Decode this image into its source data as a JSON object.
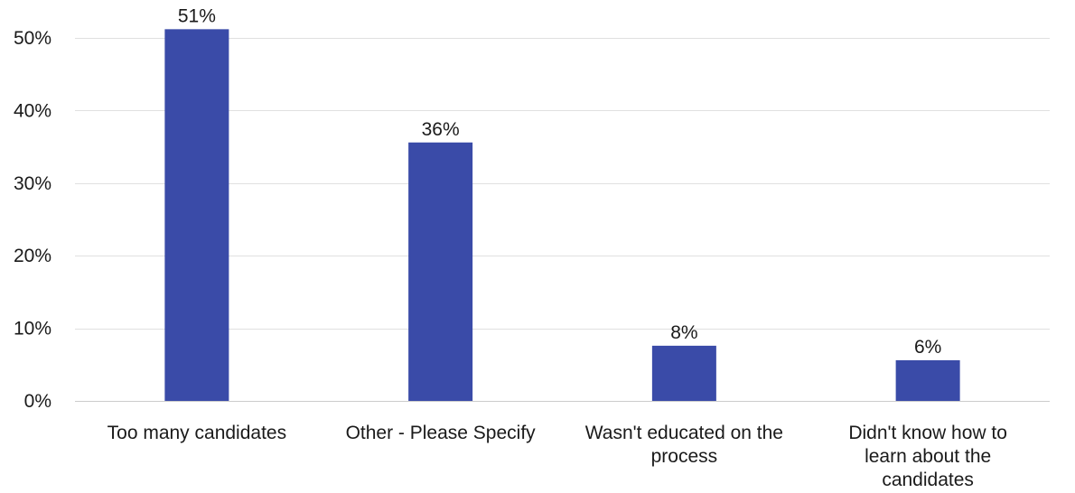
{
  "chart_data": {
    "type": "bar",
    "title": "",
    "xlabel": "",
    "ylabel": "",
    "categories": [
      "Too many candidates",
      "Other - Please Specify",
      "Wasn't educated on the process",
      "Didn't know how to learn about the candidates"
    ],
    "category_lines": [
      [
        "Too many candidates"
      ],
      [
        "Other - Please Specify"
      ],
      [
        "Wasn't educated on the",
        "process"
      ],
      [
        "Didn't know how to",
        "learn about the",
        "candidates"
      ]
    ],
    "values": [
      51.2,
      35.6,
      7.6,
      5.6
    ],
    "data_labels": [
      "51%",
      "36%",
      "8%",
      "6%"
    ],
    "ylim": [
      0,
      50
    ],
    "yticks": [
      0,
      10,
      20,
      30,
      40,
      50
    ],
    "ytick_labels": [
      "0%",
      "10%",
      "20%",
      "30%",
      "40%",
      "50%"
    ],
    "grid": true,
    "bar_color": "#3a4ba8",
    "legend": "none"
  }
}
